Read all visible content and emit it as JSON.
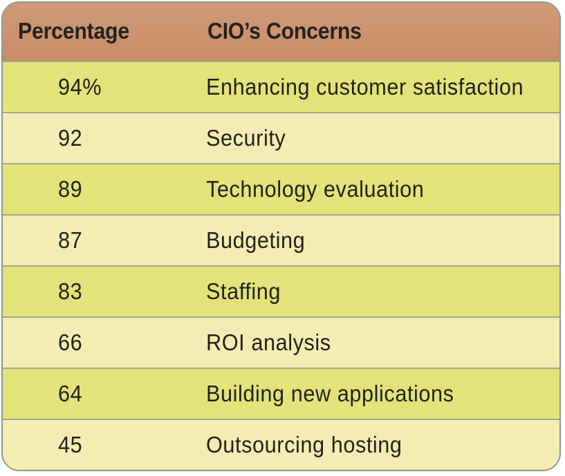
{
  "table": {
    "headers": {
      "percentage": "Percentage",
      "concerns": "CIO’s Concerns"
    },
    "rows": [
      {
        "percentage": "94%",
        "concern": "Enhancing customer satisfaction"
      },
      {
        "percentage": "92",
        "concern": "Security"
      },
      {
        "percentage": "89",
        "concern": "Technology evaluation"
      },
      {
        "percentage": "87",
        "concern": "Budgeting"
      },
      {
        "percentage": "83",
        "concern": "Staffing"
      },
      {
        "percentage": "66",
        "concern": "ROI analysis"
      },
      {
        "percentage": "64",
        "concern": "Building new applications"
      },
      {
        "percentage": "45",
        "concern": "Outsourcing hosting"
      }
    ]
  },
  "colors": {
    "header": "#c78c67",
    "row_odd": "#e3e37a",
    "row_even": "#f4ecb2",
    "border": "#8a9a8a"
  }
}
